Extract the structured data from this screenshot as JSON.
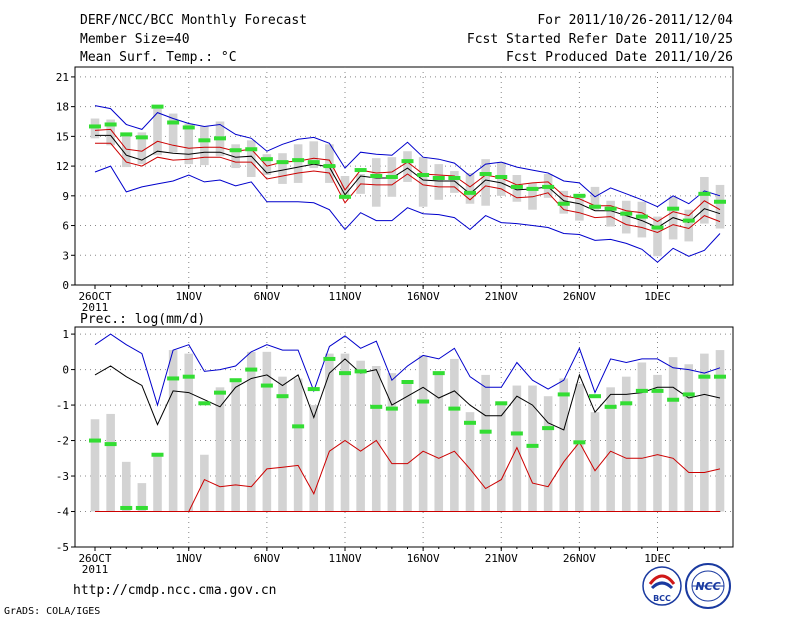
{
  "header": {
    "title": "DERF/NCC/BCC Monthly Forecast",
    "member_size": "Member Size=40",
    "variable": "Mean Surf. Temp.: °C",
    "period": "For 2011/10/26-2011/12/04",
    "started": "Fcst Started Refer Date 2011/10/25",
    "produced": "Fcst Produced Date 2011/10/26"
  },
  "footer": {
    "url": "http://cmdp.ncc.cma.gov.cn",
    "grads": "GrADS: COLA/IGES",
    "logo_bcc": "BCC",
    "logo_ncc": "NCC"
  },
  "colors": {
    "max_line": "#0000cc",
    "min_line": "#0000cc",
    "mean_line": "#000000",
    "spread_line": "#cc0000",
    "obs_mark": "#33dd33",
    "bar": "#d3d3d3",
    "grid": "#888888"
  },
  "chart_data": [
    {
      "type": "line",
      "title": "Mean Surf. Temp.: °C",
      "ylim": [
        0,
        22
      ],
      "yticks": [
        0,
        3,
        6,
        9,
        12,
        15,
        18,
        21
      ],
      "xticks": [
        {
          "day": 0,
          "label": "26OCT"
        },
        {
          "day": 6,
          "label": "1NOV"
        },
        {
          "day": 11,
          "label": "6NOV"
        },
        {
          "day": 16,
          "label": "11NOV"
        },
        {
          "day": 21,
          "label": "16NOV"
        },
        {
          "day": 26,
          "label": "21NOV"
        },
        {
          "day": 31,
          "label": "26NOV"
        },
        {
          "day": 36,
          "label": "1DEC"
        }
      ],
      "year_label": "2011",
      "series": [
        {
          "name": "max",
          "values": [
            18.1,
            17.8,
            16.2,
            15.7,
            17.4,
            16.8,
            16.3,
            16.0,
            16.2,
            15.2,
            14.8,
            13.5,
            14.2,
            14.7,
            14.9,
            14.3,
            11.8,
            13.4,
            13.2,
            13.1,
            14.4,
            12.9,
            12.7,
            12.3,
            11.0,
            12.2,
            12.4,
            11.9,
            11.6,
            11.3,
            10.5,
            10.3,
            8.9,
            9.8,
            9.2,
            8.6,
            7.9,
            9.0,
            8.2,
            9.5,
            9.0
          ]
        },
        {
          "name": "upper_spread",
          "values": [
            15.6,
            15.7,
            13.7,
            13.5,
            14.5,
            14.1,
            13.8,
            13.9,
            13.9,
            13.5,
            13.7,
            12.0,
            12.4,
            12.5,
            12.8,
            12.6,
            9.6,
            11.6,
            11.3,
            11.4,
            12.4,
            11.2,
            11.1,
            11.0,
            9.9,
            11.1,
            10.8,
            10.1,
            10.3,
            10.4,
            9.0,
            8.7,
            8.0,
            8.0,
            7.5,
            7.3,
            6.4,
            7.4,
            7.0,
            8.5,
            7.6
          ]
        },
        {
          "name": "mean",
          "values": [
            15.1,
            15.1,
            13.1,
            12.6,
            13.5,
            13.3,
            13.2,
            13.4,
            13.4,
            12.9,
            13.0,
            11.3,
            11.6,
            11.9,
            12.2,
            11.9,
            9.1,
            11.0,
            10.8,
            10.8,
            11.8,
            10.6,
            10.5,
            10.5,
            9.2,
            10.6,
            10.3,
            9.6,
            9.7,
            9.9,
            8.5,
            8.2,
            7.5,
            7.5,
            7.0,
            6.5,
            5.8,
            6.8,
            6.3,
            7.7,
            7.2
          ]
        },
        {
          "name": "lower_spread",
          "values": [
            14.3,
            14.3,
            12.4,
            12.0,
            12.9,
            12.6,
            12.7,
            12.9,
            12.9,
            12.4,
            12.4,
            10.7,
            11.0,
            11.3,
            11.5,
            11.3,
            8.3,
            10.2,
            10.1,
            10.1,
            11.2,
            10.1,
            9.9,
            9.9,
            8.6,
            10.0,
            9.7,
            8.8,
            8.9,
            9.3,
            7.6,
            7.3,
            6.8,
            6.9,
            6.1,
            5.8,
            5.3,
            6.1,
            5.7,
            7.0,
            6.4
          ]
        },
        {
          "name": "min",
          "values": [
            11.4,
            12.0,
            9.4,
            9.9,
            10.2,
            10.5,
            11.1,
            10.4,
            10.6,
            10.0,
            10.4,
            8.4,
            8.4,
            8.4,
            8.3,
            7.6,
            5.6,
            7.3,
            6.5,
            6.5,
            7.8,
            7.2,
            7.1,
            6.8,
            5.6,
            7.0,
            6.3,
            6.2,
            6.0,
            5.8,
            5.2,
            5.1,
            4.5,
            4.6,
            4.2,
            3.6,
            2.3,
            3.7,
            2.9,
            3.5,
            5.2
          ]
        }
      ],
      "boxes": {
        "low": [
          14.8,
          14.1,
          11.9,
          12.2,
          13.1,
          13.4,
          12.2,
          12.1,
          13.0,
          11.8,
          10.9,
          11.1,
          10.2,
          10.3,
          11.8,
          10.3,
          8.7,
          9.2,
          7.9,
          8.9,
          10.4,
          7.9,
          8.6,
          9.3,
          8.2,
          8.0,
          9.0,
          8.4,
          7.6,
          8.8,
          7.2,
          6.5,
          7.6,
          5.9,
          5.2,
          4.8,
          2.9,
          4.6,
          4.4,
          6.2,
          5.7
        ],
        "high": [
          16.8,
          16.7,
          15.2,
          15.4,
          18.1,
          17.3,
          16.3,
          16.0,
          16.5,
          14.2,
          14.6,
          13.2,
          13.3,
          14.2,
          14.5,
          14.2,
          11.0,
          11.2,
          12.8,
          12.9,
          13.5,
          12.9,
          12.2,
          11.5,
          11.3,
          12.7,
          12.4,
          11.1,
          10.3,
          11.2,
          9.5,
          9.0,
          9.9,
          8.5,
          8.5,
          8.4,
          6.9,
          8.9,
          7.6,
          10.9,
          10.1
        ]
      },
      "observed": [
        16.0,
        16.2,
        15.2,
        14.9,
        18.0,
        16.4,
        15.9,
        14.6,
        14.8,
        13.6,
        13.7,
        12.7,
        12.4,
        12.6,
        12.4,
        12.0,
        8.9,
        11.6,
        11.0,
        10.9,
        12.5,
        11.1,
        10.8,
        10.8,
        9.3,
        11.2,
        10.9,
        9.9,
        9.7,
        9.9,
        8.2,
        9.0,
        7.9,
        7.7,
        7.2,
        6.9,
        5.8,
        7.7,
        6.5,
        9.2,
        8.4
      ]
    },
    {
      "type": "line",
      "title": "Prec.: log(mm/d)",
      "ylim": [
        -5,
        1.2
      ],
      "yticks": [
        -5,
        -4,
        -3,
        -2,
        -1,
        0,
        1
      ],
      "xticks": [
        {
          "day": 0,
          "label": "26OCT"
        },
        {
          "day": 6,
          "label": "1NOV"
        },
        {
          "day": 11,
          "label": "6NOV"
        },
        {
          "day": 16,
          "label": "11NOV"
        },
        {
          "day": 21,
          "label": "16NOV"
        },
        {
          "day": 26,
          "label": "21NOV"
        },
        {
          "day": 31,
          "label": "26NOV"
        },
        {
          "day": 36,
          "label": "1DEC"
        }
      ],
      "year_label": "2011",
      "series": [
        {
          "name": "max",
          "values": [
            0.7,
            1.0,
            0.7,
            0.45,
            -1.0,
            0.55,
            0.7,
            -0.05,
            0.0,
            0.1,
            0.5,
            0.7,
            0.55,
            0.55,
            -0.6,
            0.65,
            0.95,
            0.6,
            0.8,
            -0.3,
            0.1,
            0.4,
            0.3,
            0.6,
            -0.2,
            -0.5,
            -0.5,
            0.2,
            -0.3,
            -0.55,
            -0.3,
            0.6,
            -0.65,
            0.3,
            0.2,
            0.3,
            0.3,
            0.05,
            0.0,
            -0.1,
            0.05
          ]
        },
        {
          "name": "mean",
          "values": [
            -0.15,
            0.1,
            -0.2,
            -0.45,
            -1.55,
            -0.6,
            -0.65,
            -0.85,
            -1.05,
            -0.5,
            -0.25,
            -0.15,
            -0.45,
            -0.15,
            -1.35,
            -0.1,
            0.3,
            -0.1,
            0.0,
            -1.0,
            -0.75,
            -0.5,
            -0.8,
            -0.6,
            -1.0,
            -1.3,
            -1.3,
            -0.75,
            -1.0,
            -1.5,
            -1.7,
            -0.15,
            -1.2,
            -0.7,
            -0.7,
            -0.65,
            -0.5,
            -0.5,
            -0.8,
            -0.7,
            -0.8
          ]
        },
        {
          "name": "min",
          "values": [
            -4.0,
            -4.0,
            -4.0,
            -4.0,
            -4.0,
            -4.0,
            -4.0,
            -3.1,
            -3.3,
            -3.25,
            -3.3,
            -2.8,
            -2.75,
            -2.7,
            -3.5,
            -2.3,
            -2.0,
            -2.3,
            -2.0,
            -2.65,
            -2.65,
            -2.3,
            -2.5,
            -2.3,
            -2.8,
            -3.35,
            -3.1,
            -2.2,
            -3.2,
            -3.3,
            -2.6,
            -2.05,
            -2.85,
            -2.3,
            -2.5,
            -2.5,
            -2.4,
            -2.5,
            -2.9,
            -2.9,
            -2.8
          ]
        },
        {
          "name": "floor",
          "values": [
            -4.0,
            -4.0,
            -4.0,
            -4.0,
            -4.0,
            -4.0,
            -4.0,
            -4.0,
            -4.0,
            -4.0,
            -4.0,
            -4.0,
            -4.0,
            -4.0,
            -4.0,
            -4.0,
            -4.0,
            -4.0,
            -4.0,
            -4.0,
            -4.0,
            -4.0,
            -4.0,
            -4.0,
            -4.0,
            -4.0,
            -4.0,
            -4.0,
            -4.0,
            -4.0,
            -4.0,
            -4.0,
            -4.0,
            -4.0,
            -4.0,
            -4.0,
            -4.0,
            -4.0,
            -4.0,
            -4.0,
            -4.0
          ]
        }
      ],
      "boxes": {
        "low": [
          -4.0,
          -4.0,
          -4.0,
          -4.0,
          -4.0,
          -4.0,
          -4.0,
          -4.0,
          -4.0,
          -4.0,
          -4.0,
          -4.0,
          -4.0,
          -4.0,
          -4.0,
          -4.0,
          -4.0,
          -4.0,
          -4.0,
          -4.0,
          -4.0,
          -4.0,
          -4.0,
          -4.0,
          -4.0,
          -4.0,
          -4.0,
          -4.0,
          -4.0,
          -4.0,
          -4.0,
          -4.0,
          -4.0,
          -4.0,
          -4.0,
          -4.0,
          -4.0,
          -4.0,
          -4.0,
          -4.0,
          -4.0
        ],
        "high": [
          -1.4,
          -1.25,
          -2.6,
          -3.2,
          -2.45,
          0.55,
          0.45,
          -2.4,
          -0.5,
          -0.35,
          0.5,
          0.5,
          -0.2,
          -0.25,
          -1.0,
          0.45,
          0.45,
          0.25,
          0.1,
          -0.1,
          -0.4,
          0.4,
          -0.05,
          0.3,
          -1.2,
          -0.15,
          -0.95,
          -0.45,
          -0.45,
          -0.75,
          -0.25,
          -0.4,
          -1.2,
          -0.5,
          -0.2,
          0.2,
          -0.15,
          0.35,
          0.15,
          0.45,
          0.55
        ]
      },
      "observed": [
        -2.0,
        -2.1,
        -3.9,
        -3.9,
        -2.4,
        -0.25,
        -0.2,
        -0.95,
        -0.65,
        -0.3,
        0.0,
        -0.45,
        -0.75,
        -1.6,
        -0.55,
        0.3,
        -0.1,
        -0.05,
        -1.05,
        -1.1,
        -0.35,
        -0.9,
        -0.1,
        -1.1,
        -1.5,
        -1.75,
        -0.95,
        -1.8,
        -2.15,
        -1.65,
        -0.7,
        -2.05,
        -0.75,
        -1.05,
        -0.95,
        -0.6,
        -0.6,
        -0.85,
        -0.7,
        -0.2,
        -0.2
      ]
    }
  ]
}
